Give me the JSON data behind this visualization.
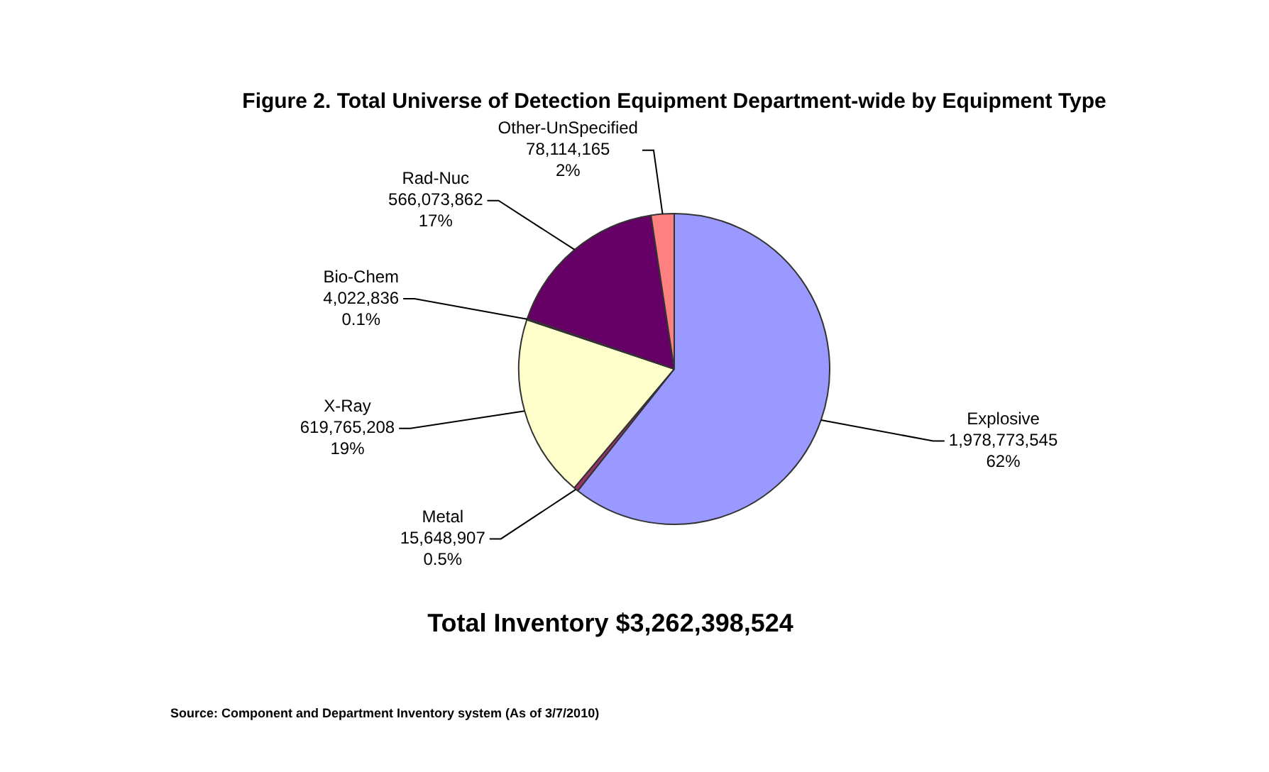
{
  "chart_data": {
    "type": "pie",
    "title": "Figure 2. Total Universe of Detection Equipment Department-wide by Equipment Type",
    "categories": [
      "Explosive",
      "Metal",
      "X-Ray",
      "Bio-Chem",
      "Rad-Nuc",
      "Other-UnSpecified"
    ],
    "values": [
      1978773545,
      15648907,
      619765208,
      4022836,
      566073862,
      78114165
    ],
    "value_labels": [
      "1,978,773,545\n62%",
      "15,648,907\n0.5%",
      "619,765,208\n19%",
      "4,022,836\n0.1%",
      "566,073,862\n17%",
      "78,114,165\n2%"
    ],
    "colors": [
      "#9999ff",
      "#993366",
      "#ffffcc",
      "#ccffff",
      "#660066",
      "#ff8080"
    ],
    "annotations": [
      "Total Inventory $3,262,398,524",
      "Source: Component and Department Inventory system (As of 3/7/2010)"
    ],
    "legend": false
  }
}
